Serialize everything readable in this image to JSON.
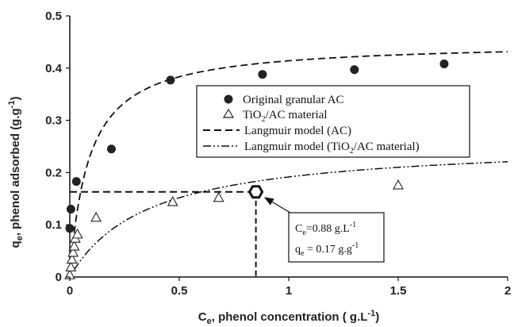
{
  "chart_data": {
    "type": "scatter",
    "xlabel": {
      "main": "C",
      "sub": "e",
      "rest": ", phenol concentration ( g.L",
      "sup": "-1",
      "end": ")"
    },
    "ylabel": {
      "main": "q",
      "sub": "e",
      "rest": ", phenol adsorbed (g.g",
      "sup": "-1",
      "end": ")"
    },
    "xlim": [
      0,
      2
    ],
    "ylim": [
      0,
      0.5
    ],
    "xticks": [
      "0",
      "0.5",
      "1",
      "1.5",
      "2"
    ],
    "yticks": [
      "0",
      "0.1",
      "0.2",
      "0.3",
      "0.4",
      "0.5"
    ],
    "series": [
      {
        "name": "Original granular AC",
        "marker": "filled-circle",
        "points": [
          [
            0.0,
            0.093
          ],
          [
            0.005,
            0.13
          ],
          [
            0.03,
            0.183
          ],
          [
            0.19,
            0.245
          ],
          [
            0.46,
            0.377
          ],
          [
            0.88,
            0.388
          ],
          [
            1.3,
            0.397
          ],
          [
            1.71,
            0.408
          ]
        ]
      },
      {
        "name": "TiO2/AC material",
        "marker": "open-triangle",
        "points": [
          [
            0.0,
            0.005
          ],
          [
            0.005,
            0.02
          ],
          [
            0.01,
            0.035
          ],
          [
            0.015,
            0.048
          ],
          [
            0.02,
            0.06
          ],
          [
            0.025,
            0.075
          ],
          [
            0.035,
            0.083
          ],
          [
            0.12,
            0.115
          ],
          [
            0.47,
            0.145
          ],
          [
            0.68,
            0.153
          ],
          [
            1.5,
            0.177
          ]
        ]
      }
    ],
    "models": [
      {
        "name": "Langmuir model (AC)",
        "style": "dashed",
        "qmax": 0.45,
        "K": 11.5
      },
      {
        "name": "Langmuir model (TiO2/AC material)",
        "style": "dash-dot-dot",
        "qmax": 0.26,
        "K": 2.8
      }
    ],
    "highlight_point": {
      "x": 0.85,
      "y": 0.163
    },
    "legend": {
      "placement": "center-right",
      "entries": [
        {
          "label": "Original granular AC",
          "marker": "filled-circle"
        },
        {
          "label_main": "TiO",
          "label_sub": "2",
          "label_rest": "/AC material",
          "marker": "open-triangle"
        },
        {
          "label": "Langmuir model (AC)",
          "marker": "dashed"
        },
        {
          "label_main": "Langmuir model (TiO",
          "label_sub": "2",
          "label_rest": "/AC material)",
          "marker": "dash-dot-dot"
        }
      ]
    },
    "annotation": {
      "line1": {
        "main": "C",
        "sub": "e",
        "rest": "=0.88 g.L",
        "sup": "-1"
      },
      "line2": {
        "main": "q",
        "sub": "e",
        "rest": " = 0.17 g.g",
        "sup": "-1"
      }
    }
  }
}
